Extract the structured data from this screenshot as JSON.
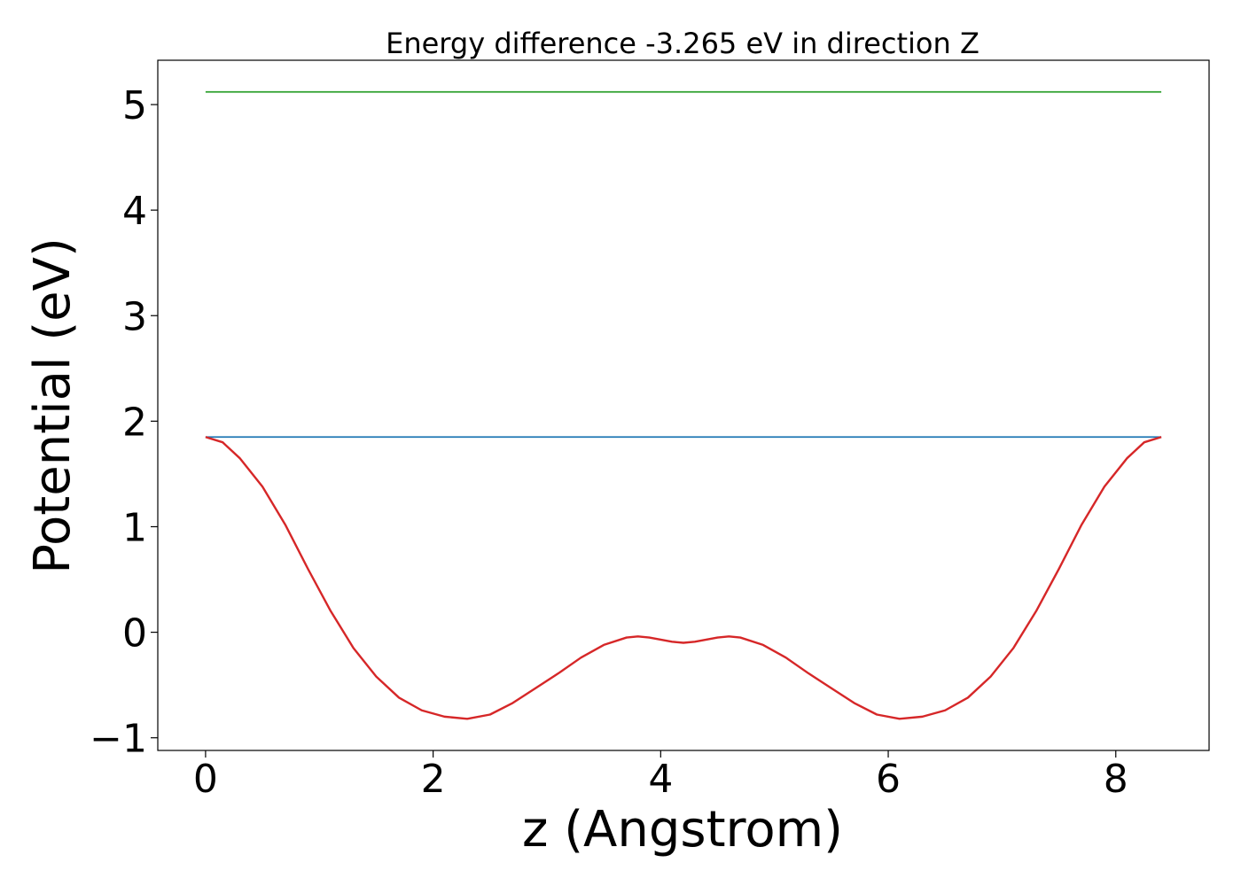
{
  "chart_data": {
    "type": "line",
    "title": "Energy difference -3.265 eV in direction Z",
    "xlabel": "z (Angstrom)",
    "ylabel": "Potential (eV)",
    "xlim": [
      -0.42,
      8.82
    ],
    "ylim": [
      -1.12,
      5.42
    ],
    "xticks": [
      0,
      2,
      4,
      6,
      8
    ],
    "yticks": [
      -1,
      0,
      1,
      2,
      3,
      4,
      5
    ],
    "xtick_labels": [
      "0",
      "2",
      "4",
      "6",
      "8"
    ],
    "ytick_labels": [
      "−1",
      "0",
      "1",
      "2",
      "3",
      "4",
      "5"
    ],
    "grid": false,
    "legend": "none",
    "series": [
      {
        "color": "#2ca02c",
        "x": [
          0,
          8.4
        ],
        "y": [
          5.12,
          5.12
        ]
      },
      {
        "color": "#1f77b4",
        "x": [
          0,
          8.4
        ],
        "y": [
          1.85,
          1.85
        ]
      },
      {
        "color": "#d62728",
        "x": [
          0,
          0.15,
          0.3,
          0.5,
          0.7,
          0.9,
          1.1,
          1.3,
          1.5,
          1.7,
          1.9,
          2.1,
          2.3,
          2.5,
          2.7,
          2.9,
          3.1,
          3.3,
          3.5,
          3.7,
          3.8,
          3.9,
          4.0,
          4.1,
          4.2,
          4.3,
          4.4,
          4.5,
          4.6,
          4.7,
          4.9,
          5.1,
          5.3,
          5.5,
          5.7,
          5.9,
          6.1,
          6.3,
          6.5,
          6.7,
          6.9,
          7.1,
          7.3,
          7.5,
          7.7,
          7.9,
          8.1,
          8.25,
          8.4
        ],
        "y": [
          1.85,
          1.8,
          1.65,
          1.38,
          1.02,
          0.6,
          0.2,
          -0.15,
          -0.42,
          -0.62,
          -0.74,
          -0.8,
          -0.82,
          -0.78,
          -0.67,
          -0.53,
          -0.39,
          -0.24,
          -0.12,
          -0.05,
          -0.04,
          -0.05,
          -0.07,
          -0.09,
          -0.1,
          -0.09,
          -0.07,
          -0.05,
          -0.04,
          -0.05,
          -0.12,
          -0.24,
          -0.39,
          -0.53,
          -0.67,
          -0.78,
          -0.82,
          -0.8,
          -0.74,
          -0.62,
          -0.42,
          -0.15,
          0.2,
          0.6,
          1.02,
          1.38,
          1.65,
          1.8,
          1.85
        ]
      }
    ]
  }
}
